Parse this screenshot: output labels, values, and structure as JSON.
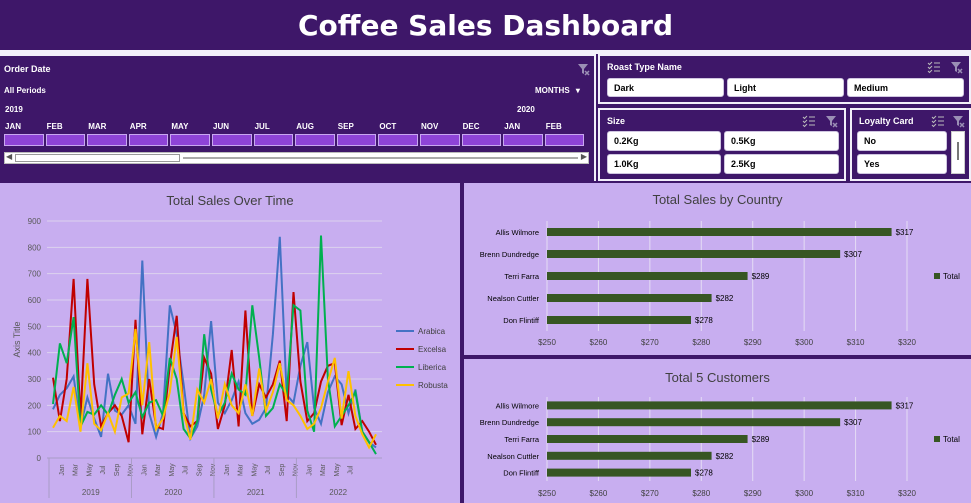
{
  "title": "Coffee Sales Dashboard",
  "order_date": {
    "label": "Order Date",
    "periods": "All Periods",
    "granularity": "MONTHS",
    "years": [
      "2019",
      "2020"
    ],
    "months": [
      "JAN",
      "FEB",
      "MAR",
      "APR",
      "MAY",
      "JUN",
      "JUL",
      "AUG",
      "SEP",
      "OCT",
      "NOV",
      "DEC",
      "JAN",
      "FEB"
    ]
  },
  "roast_type": {
    "label": "Roast Type Name",
    "options": [
      "Dark",
      "Light",
      "Medium"
    ]
  },
  "size": {
    "label": "Size",
    "options": [
      "0.2Kg",
      "0.5Kg",
      "1.0Kg",
      "2.5Kg"
    ]
  },
  "loyalty": {
    "label": "Loyalty Card",
    "options": [
      "No",
      "Yes"
    ]
  },
  "colors": {
    "background": "#3e1769",
    "panel": "#c8aef0",
    "bar": "#375623",
    "arabica": "#4472c4",
    "excelsa": "#c00000",
    "liberica": "#00b050",
    "robusta": "#ffc000"
  },
  "chart_data": [
    {
      "type": "line",
      "title": "Total Sales Over Time",
      "ylabel": "Axis Title",
      "ylim": [
        0,
        900
      ],
      "yticks": [
        0,
        100,
        200,
        300,
        400,
        500,
        600,
        700,
        800,
        900
      ],
      "month_ticks": [
        "Jan",
        "Mar",
        "May",
        "Jul",
        "Sep",
        "Nov",
        "Jan",
        "Mar",
        "May",
        "Jul",
        "Sep",
        "Nov",
        "Jan",
        "Mar",
        "May",
        "Jul",
        "Sep",
        "Nov",
        "Jan",
        "Mar",
        "May",
        "Jul"
      ],
      "years": [
        "2019",
        "2020",
        "2021",
        "2022"
      ],
      "legend": "right",
      "series": [
        {
          "name": "Arabica",
          "color": "#4472c4",
          "values": [
            185,
            240,
            265,
            310,
            120,
            230,
            150,
            80,
            320,
            180,
            165,
            200,
            130,
            750,
            170,
            80,
            170,
            580,
            470,
            280,
            75,
            120,
            240,
            520,
            210,
            170,
            220,
            290,
            170,
            130,
            145,
            190,
            470,
            840,
            240,
            210,
            350,
            440,
            190,
            130,
            250,
            310,
            280,
            170,
            260,
            100,
            60,
            40
          ]
        },
        {
          "name": "Excelsa",
          "color": "#c00000",
          "values": [
            305,
            140,
            300,
            680,
            150,
            680,
            280,
            120,
            170,
            200,
            160,
            60,
            525,
            90,
            300,
            120,
            110,
            350,
            540,
            170,
            120,
            140,
            380,
            320,
            110,
            200,
            410,
            120,
            560,
            160,
            280,
            230,
            280,
            370,
            140,
            630,
            290,
            140,
            170,
            290,
            350,
            360,
            125,
            240,
            110,
            140,
            100,
            50
          ]
        },
        {
          "name": "Liberica",
          "color": "#00b050",
          "values": [
            205,
            435,
            360,
            535,
            120,
            175,
            165,
            200,
            165,
            240,
            300,
            210,
            250,
            155,
            210,
            220,
            160,
            380,
            300,
            110,
            75,
            140,
            470,
            260,
            160,
            210,
            320,
            260,
            240,
            580,
            380,
            160,
            190,
            280,
            240,
            580,
            560,
            180,
            100,
            845,
            300,
            120,
            160,
            200,
            250,
            100,
            60,
            15
          ]
        },
        {
          "name": "Robusta",
          "color": "#ffc000",
          "values": [
            115,
            160,
            140,
            270,
            100,
            360,
            130,
            105,
            170,
            100,
            230,
            245,
            490,
            200,
            440,
            110,
            150,
            250,
            460,
            170,
            70,
            260,
            210,
            300,
            150,
            280,
            200,
            170,
            280,
            160,
            340,
            180,
            250,
            360,
            220,
            200,
            160,
            110,
            130,
            190,
            290,
            380,
            150,
            330,
            160,
            90,
            40,
            90
          ]
        }
      ]
    },
    {
      "type": "bar",
      "title": "Total Sales by Country",
      "categories": [
        "Allis Wilmore",
        "Brenn Dundredge",
        "Terri Farra",
        "Nealson Cuttler",
        "Don Flintiff"
      ],
      "values": [
        317,
        307,
        289,
        282,
        278
      ],
      "labels": [
        "$317",
        "$307",
        "$289",
        "$282",
        "$278"
      ],
      "xlim": [
        250,
        320
      ],
      "xticks": [
        "$250",
        "$260",
        "$270",
        "$280",
        "$290",
        "$300",
        "$310",
        "$320"
      ],
      "legend": "Total"
    },
    {
      "type": "bar",
      "title": "Total 5 Customers",
      "categories": [
        "Allis Wilmore",
        "Brenn Dundredge",
        "Terri Farra",
        "Nealson Cuttler",
        "Don Flintiff"
      ],
      "values": [
        317,
        307,
        289,
        282,
        278
      ],
      "labels": [
        "$317",
        "$307",
        "$289",
        "$282",
        "$278"
      ],
      "xlim": [
        250,
        320
      ],
      "xticks": [
        "$250",
        "$260",
        "$270",
        "$280",
        "$290",
        "$300",
        "$310",
        "$320"
      ],
      "legend": "Total"
    }
  ]
}
